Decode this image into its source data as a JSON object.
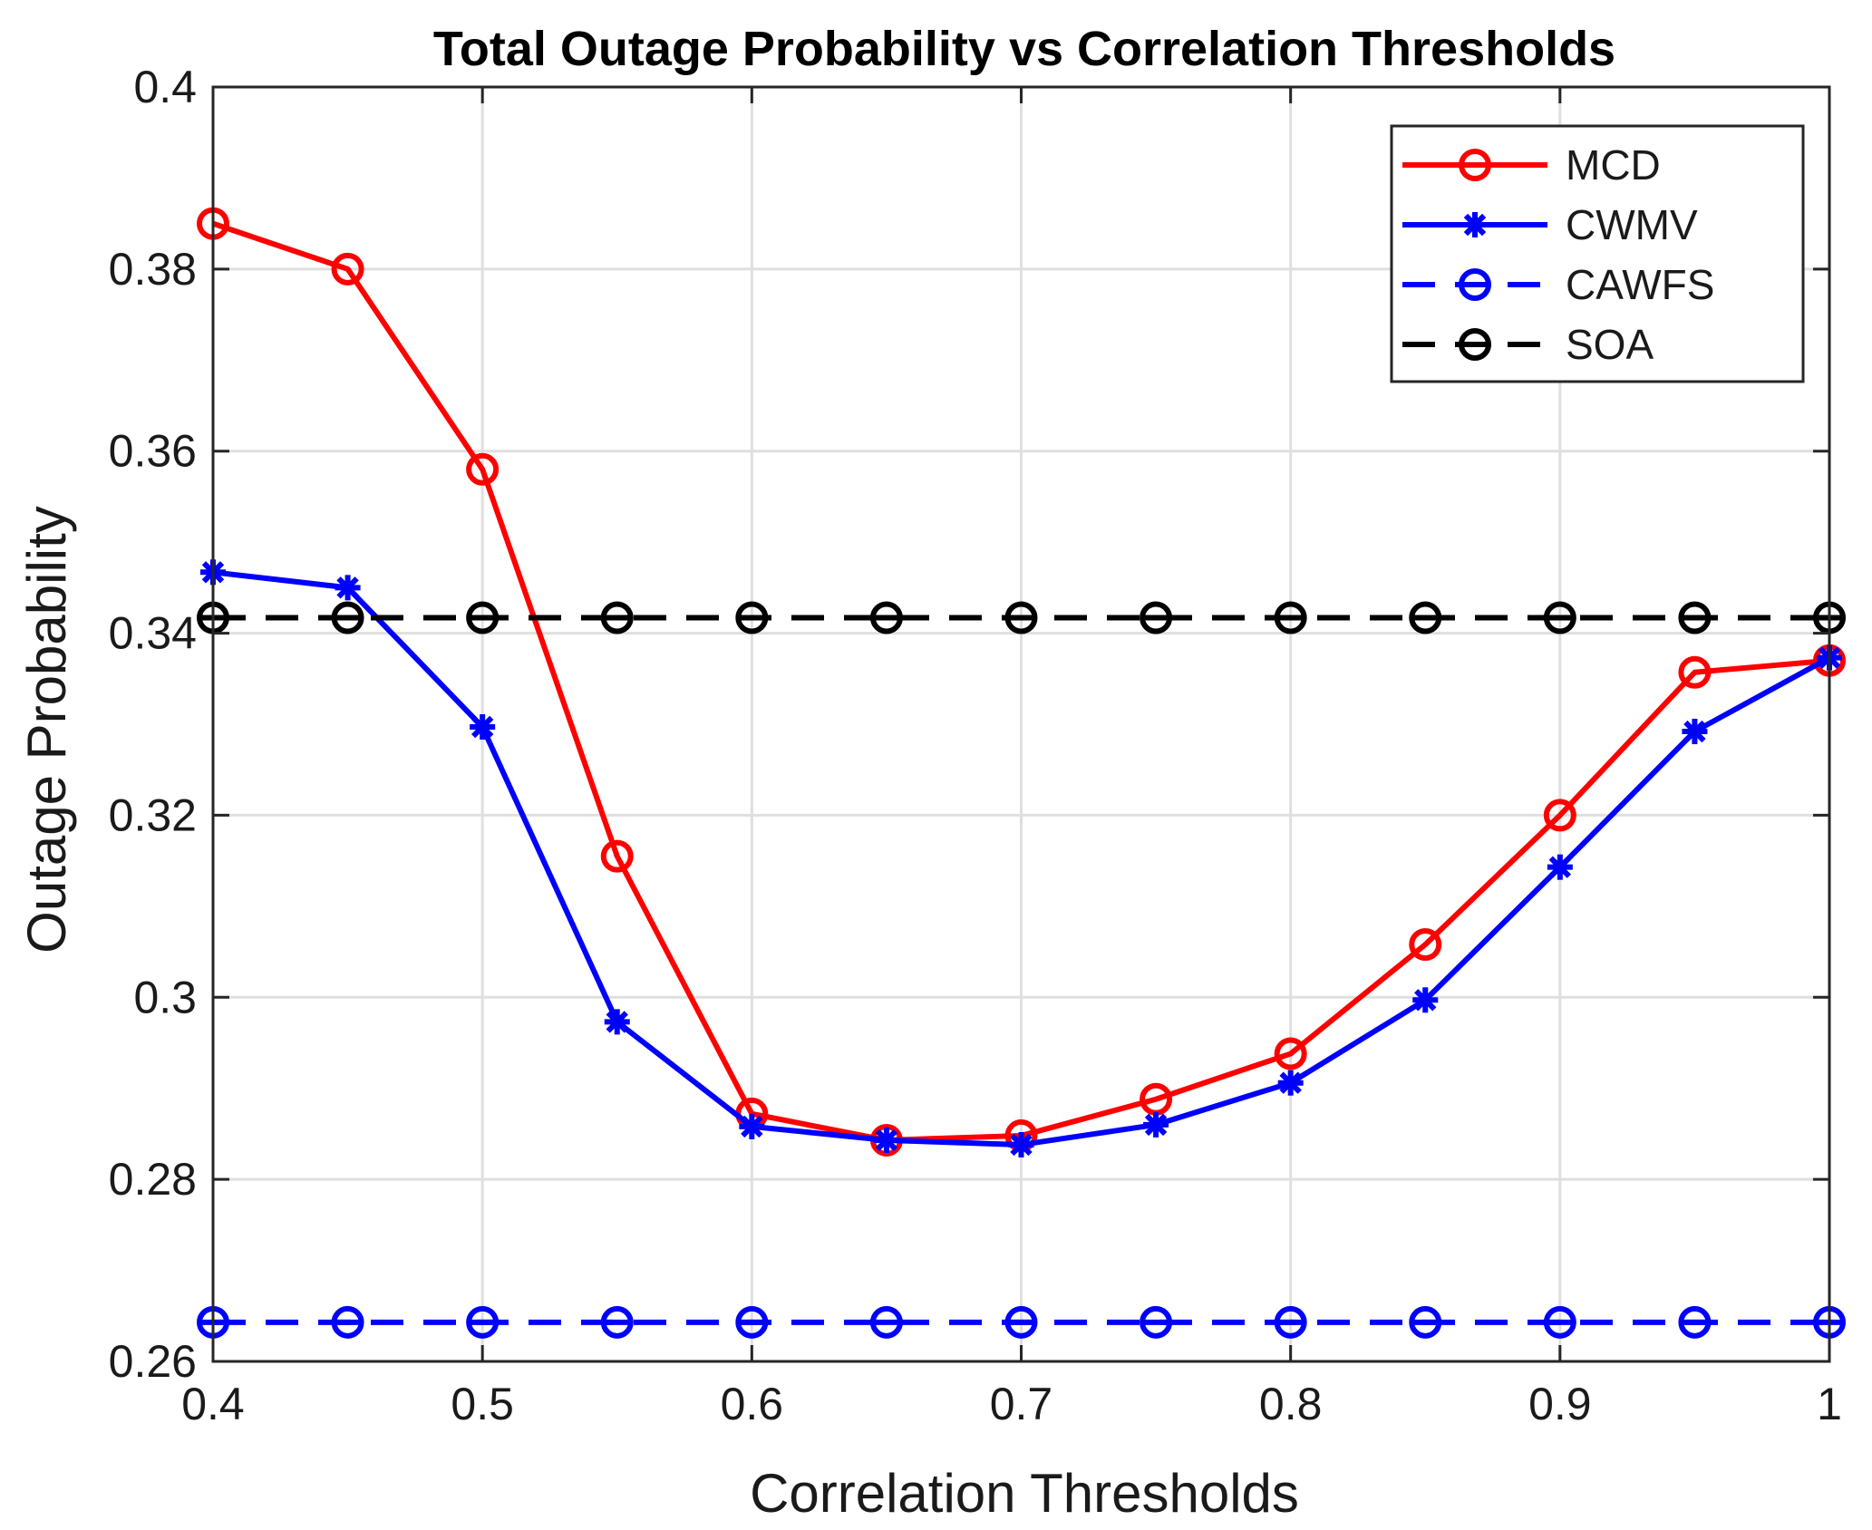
{
  "chart_data": {
    "type": "line",
    "title": "Total Outage Probability vs Correlation Thresholds",
    "xlabel": "Correlation Thresholds",
    "ylabel": "Outage Probability",
    "xlim": [
      0.4,
      1
    ],
    "ylim": [
      0.26,
      0.4
    ],
    "grid": true,
    "legend_position": "top-right",
    "x_ticks": [
      0.4,
      0.5,
      0.6,
      0.7,
      0.8,
      0.9,
      1
    ],
    "x_tick_labels": [
      "0.4",
      "0.5",
      "0.6",
      "0.7",
      "0.8",
      "0.9",
      "1"
    ],
    "y_ticks": [
      0.26,
      0.28,
      0.3,
      0.32,
      0.34,
      0.36,
      0.38,
      0.4
    ],
    "y_tick_labels": [
      "0.26",
      "0.28",
      "0.3",
      "0.32",
      "0.34",
      "0.36",
      "0.38",
      "0.4"
    ],
    "x": [
      0.4,
      0.45,
      0.5,
      0.55,
      0.6,
      0.65,
      0.7,
      0.75,
      0.8,
      0.85,
      0.9,
      0.95,
      1
    ],
    "series": [
      {
        "name": "MCD",
        "color": "#ff0000",
        "line": "solid",
        "marker": "circle",
        "values": [
          0.385,
          0.38,
          0.358,
          0.3155,
          0.2872,
          0.2843,
          0.2848,
          0.2888,
          0.2938,
          0.3058,
          0.32,
          0.3357,
          0.337
        ]
      },
      {
        "name": "CWMV",
        "color": "#0000ff",
        "line": "solid",
        "marker": "asterisk",
        "values": [
          0.3467,
          0.345,
          0.3297,
          0.2973,
          0.2858,
          0.2843,
          0.2838,
          0.286,
          0.2906,
          0.2997,
          0.3143,
          0.3292,
          0.3373
        ]
      },
      {
        "name": "CAWFS",
        "color": "#0000ff",
        "line": "dashed",
        "marker": "circle-bar",
        "values": [
          0.2643,
          0.2643,
          0.2643,
          0.2643,
          0.2643,
          0.2643,
          0.2643,
          0.2643,
          0.2643,
          0.2643,
          0.2643,
          0.2643,
          0.2643
        ]
      },
      {
        "name": "SOA",
        "color": "#000000",
        "line": "dashed",
        "marker": "circle-bar",
        "values": [
          0.3417,
          0.3417,
          0.3417,
          0.3417,
          0.3417,
          0.3417,
          0.3417,
          0.3417,
          0.3417,
          0.3417,
          0.3417,
          0.3417,
          0.3417
        ]
      }
    ]
  }
}
